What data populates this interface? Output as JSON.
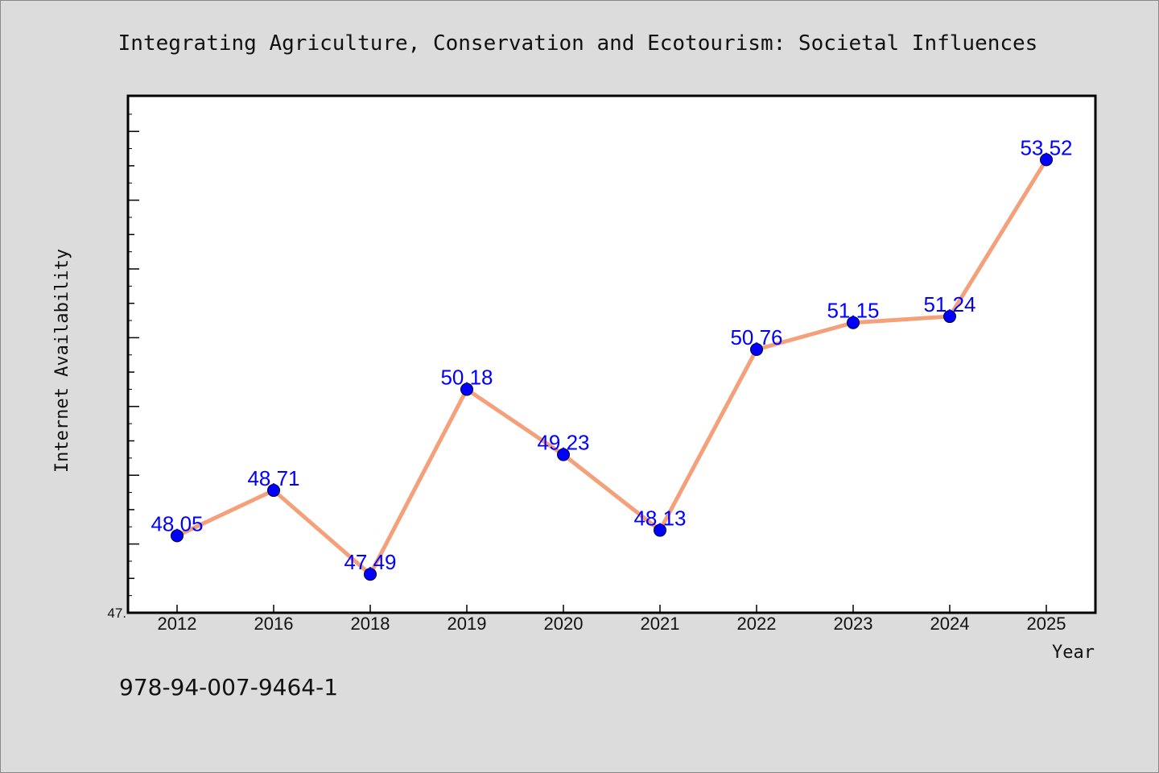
{
  "chart_data": {
    "type": "line",
    "title": "Integrating Agriculture, Conservation and Ecotourism: Societal Influences",
    "xlabel": "Year",
    "ylabel": "Internet Availability",
    "categories": [
      "2012",
      "2016",
      "2018",
      "2019",
      "2020",
      "2021",
      "2022",
      "2023",
      "2024",
      "2025"
    ],
    "series": [
      {
        "values": [
          48.05,
          48.71,
          47.49,
          50.18,
          49.23,
          48.13,
          50.76,
          51.15,
          51.24,
          53.52
        ],
        "labels": [
          "48.05",
          "48.71",
          "47.49",
          "50.18",
          "49.23",
          "48.13",
          "50.76",
          "51.15",
          "51.24",
          "53.52"
        ],
        "line_color": "#f4a07a",
        "marker_color": "#0000ff"
      }
    ],
    "ylim": [
      46.93,
      54.45
    ],
    "y_tick_labels": [
      {
        "value": 46.93,
        "text": "47."
      }
    ],
    "grid": false,
    "legend": "none"
  },
  "footer_text": "978-94-007-9464-1",
  "colors": {
    "background": "#dcdcdc",
    "plot_background": "#ffffff",
    "line": "#f4a07a",
    "marker": "#0000ff",
    "data_label": "#0000ff"
  }
}
